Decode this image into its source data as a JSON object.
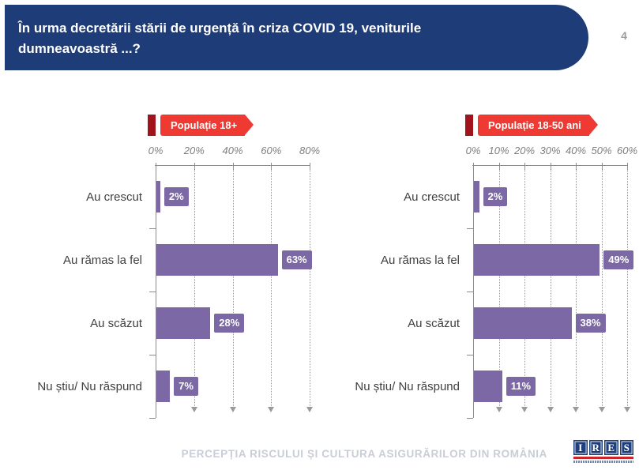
{
  "slide": {
    "title": "În urma decretării stării de urgență în criza COVID 19, veniturile dumneavoastră ...?",
    "page_number": "4",
    "footer_title": "PERCEPȚIA RISCULUI ȘI CULTURA ASIGURĂRILOR DIN ROMÂNIA",
    "logo": {
      "letters": [
        "I",
        "R",
        "E",
        "S"
      ]
    }
  },
  "colors": {
    "header_bg": "#1e3c78",
    "banner_red": "#ee3a33",
    "banner_dark_red": "#a2141b",
    "bar_purple": "#7b68a4",
    "axis_gray": "#8c8c8c",
    "category_label": "#3f3f3f",
    "footer_gray": "#c8cdd6",
    "logo_blue": "#1f3f7c",
    "logo_red": "#c9252c"
  },
  "chart_data": [
    {
      "type": "bar",
      "orientation": "horizontal",
      "title": "Populație 18+",
      "categories": [
        "Au crescut",
        "Au rămas la fel",
        "Au scăzut",
        "Nu știu/ Nu răspund"
      ],
      "values": [
        2,
        63,
        28,
        7
      ],
      "unit": "%",
      "xlim": [
        0,
        80
      ],
      "x_ticks": [
        "0%",
        "20%",
        "40%",
        "60%",
        "80%"
      ],
      "grid": "dotted-vertical-with-arrows",
      "legend_position": "none",
      "bar_color": "#7b68a4"
    },
    {
      "type": "bar",
      "orientation": "horizontal",
      "title": "Populație 18-50 ani",
      "categories": [
        "Au crescut",
        "Au rămas la fel",
        "Au scăzut",
        "Nu știu/ Nu răspund"
      ],
      "values": [
        2,
        49,
        38,
        11
      ],
      "unit": "%",
      "xlim": [
        0,
        60
      ],
      "x_ticks": [
        "0%",
        "10%",
        "20%",
        "30%",
        "40%",
        "50%",
        "60%"
      ],
      "grid": "dotted-vertical-with-arrows",
      "legend_position": "none",
      "bar_color": "#7b68a4"
    }
  ]
}
